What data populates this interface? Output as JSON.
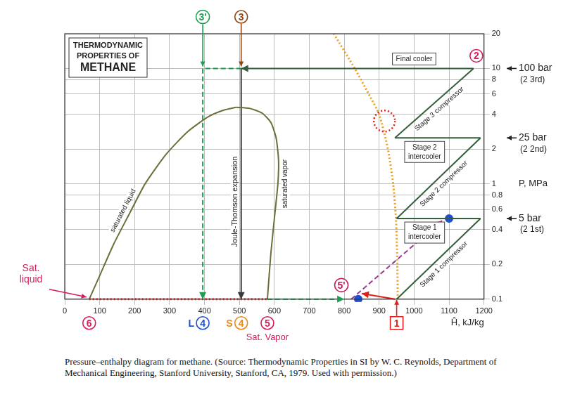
{
  "chart_data": {
    "type": "line",
    "title": "THERMODYNAMIC PROPERTIES OF METHANE",
    "x_label": "Ĥ, kJ/kg",
    "y_label": "P, MPa",
    "caption": "Pressure–enthalpy diagram for methane. (Source: Thermodynamic Properties in SI by W. C. Reynolds, Department of Mechanical Engineering, Stanford University, Stanford, CA, 1979. Used with permission.)",
    "log": "y",
    "grid": true,
    "xlim": [
      0,
      1200
    ],
    "xticks": [
      0,
      100,
      200,
      300,
      400,
      500,
      600,
      700,
      800,
      900,
      1000,
      1100,
      1200
    ],
    "ylim": [
      0.1,
      20
    ],
    "yticks": [
      0.1,
      0.2,
      0.4,
      0.6,
      0.8,
      1,
      2,
      4,
      6,
      8,
      10,
      20
    ],
    "series": [
      {
        "name": "saturated liquid",
        "color": "#6e6e3c",
        "line_style": "solid",
        "x": [
          70,
          100,
          140,
          185,
          230,
          290,
          350,
          410,
          455,
          490
        ],
        "values": [
          0.1,
          0.16,
          0.3,
          0.55,
          1.0,
          1.8,
          2.8,
          3.8,
          4.35,
          4.6
        ]
      },
      {
        "name": "saturated vapor",
        "color": "#6e6e3c",
        "line_style": "solid",
        "x": [
          490,
          530,
          565,
          590,
          605,
          612,
          610,
          600,
          590,
          580
        ],
        "values": [
          4.6,
          4.5,
          4.1,
          3.4,
          2.5,
          1.6,
          1.0,
          0.5,
          0.25,
          0.1
        ]
      },
      {
        "name": "Stage 1 compressor",
        "color": "#355e3b",
        "line_style": "solid",
        "x": [
          950,
          1190
        ],
        "values": [
          0.1,
          0.5
        ]
      },
      {
        "name": "Stage 1 intercooler",
        "color": "#355e3b",
        "line_style": "solid",
        "x": [
          1190,
          950
        ],
        "values": [
          0.5,
          0.5
        ]
      },
      {
        "name": "Stage 2 compressor",
        "color": "#355e3b",
        "line_style": "solid",
        "x": [
          950,
          1190
        ],
        "values": [
          0.5,
          2.5
        ]
      },
      {
        "name": "Stage 2 intercooler",
        "color": "#355e3b",
        "line_style": "solid",
        "x": [
          1190,
          945
        ],
        "values": [
          2.5,
          2.5
        ]
      },
      {
        "name": "Stage 3 compressor",
        "color": "#355e3b",
        "line_style": "solid",
        "x": [
          945,
          1170
        ],
        "values": [
          2.5,
          10
        ]
      },
      {
        "name": "Final cooler",
        "color": "#355e3b",
        "line_style": "solid",
        "marker": "arrow",
        "x": [
          1170,
          505
        ],
        "values": [
          10,
          10
        ]
      },
      {
        "name": "Joule-Thomson expansion",
        "color": "#3a3a3a",
        "line_style": "solid",
        "marker": "arrow",
        "x": [
          505,
          505
        ],
        "values": [
          10,
          0.1
        ]
      },
      {
        "color": "#1a9e50",
        "line_style": "dashed",
        "marker": "arrow",
        "x": [
          505,
          395,
          395
        ],
        "values": [
          10,
          10,
          0.1
        ]
      },
      {
        "color": "#f0a020",
        "line_style": "dotted",
        "x": [
          770,
          830,
          870,
          900,
          925,
          940,
          948,
          952,
          953
        ],
        "values": [
          20,
          10,
          6,
          4,
          2,
          1,
          0.5,
          0.2,
          0.1
        ]
      },
      {
        "color": "#d93a3a",
        "line_style": "dotted",
        "x": [
          70,
          580
        ],
        "values": [
          0.1,
          0.1
        ]
      },
      {
        "color": "#1a9e50",
        "line_style": "dashed",
        "marker": "arrow",
        "x": [
          580,
          800
        ],
        "values": [
          0.1,
          0.1
        ]
      },
      {
        "color": "#9b3a8f",
        "line_style": "dashed",
        "marker": "arrow",
        "x": [
          820,
          1080
        ],
        "values": [
          0.1,
          0.48
        ]
      },
      {
        "color": "#e0201b",
        "line_style": "solid",
        "marker": "arrow",
        "x": [
          945,
          850
        ],
        "values": [
          0.1,
          0.112
        ]
      },
      {
        "color": "#1f4fd0",
        "line_style": "none",
        "marker": "circle",
        "x": [
          840,
          1100
        ],
        "values": [
          0.1,
          0.5
        ]
      }
    ],
    "points": [
      {
        "label": "1",
        "x": 950,
        "y": 0.1,
        "color": "#e0201b",
        "marker": "square"
      },
      {
        "label": "2",
        "x": 1170,
        "y": 10,
        "color": "#d81b60",
        "marker": "circle"
      },
      {
        "label": "3",
        "x": 505,
        "y": 10,
        "color": "#8b4513",
        "marker": "circle"
      },
      {
        "label": "3'",
        "x": 395,
        "y": 10,
        "color": "#1a9e50",
        "marker": "circle"
      },
      {
        "label": "4",
        "prefix": "L",
        "x": 395,
        "y": 0.1,
        "color": "#1f4fd0",
        "marker": "circle"
      },
      {
        "label": "4",
        "prefix": "S",
        "x": 505,
        "y": 0.1,
        "color": "#e6891a",
        "marker": "circle"
      },
      {
        "label": "5",
        "note": "Sat. Vapor",
        "x": 580,
        "y": 0.1,
        "color": "#d81b60",
        "marker": "circle"
      },
      {
        "label": "5'",
        "x": 820,
        "y": 0.1,
        "color": "#c2185b",
        "marker": "circle"
      },
      {
        "label": "6",
        "note": "Sat. liquid",
        "x": 70,
        "y": 0.1,
        "color": "#d81b60",
        "marker": "circle"
      }
    ],
    "pressure_marks": [
      {
        "y": 10,
        "text": "100 bar",
        "sub": "(2 3rd)"
      },
      {
        "y": 2.5,
        "text": "25 bar",
        "sub": "(2 2nd)"
      },
      {
        "y": 0.5,
        "text": "5 bar",
        "sub": "(2 1st)"
      }
    ],
    "highlight": {
      "x": 915,
      "y": 3.5,
      "color": "#e0201b",
      "line_style": "dotted"
    }
  }
}
